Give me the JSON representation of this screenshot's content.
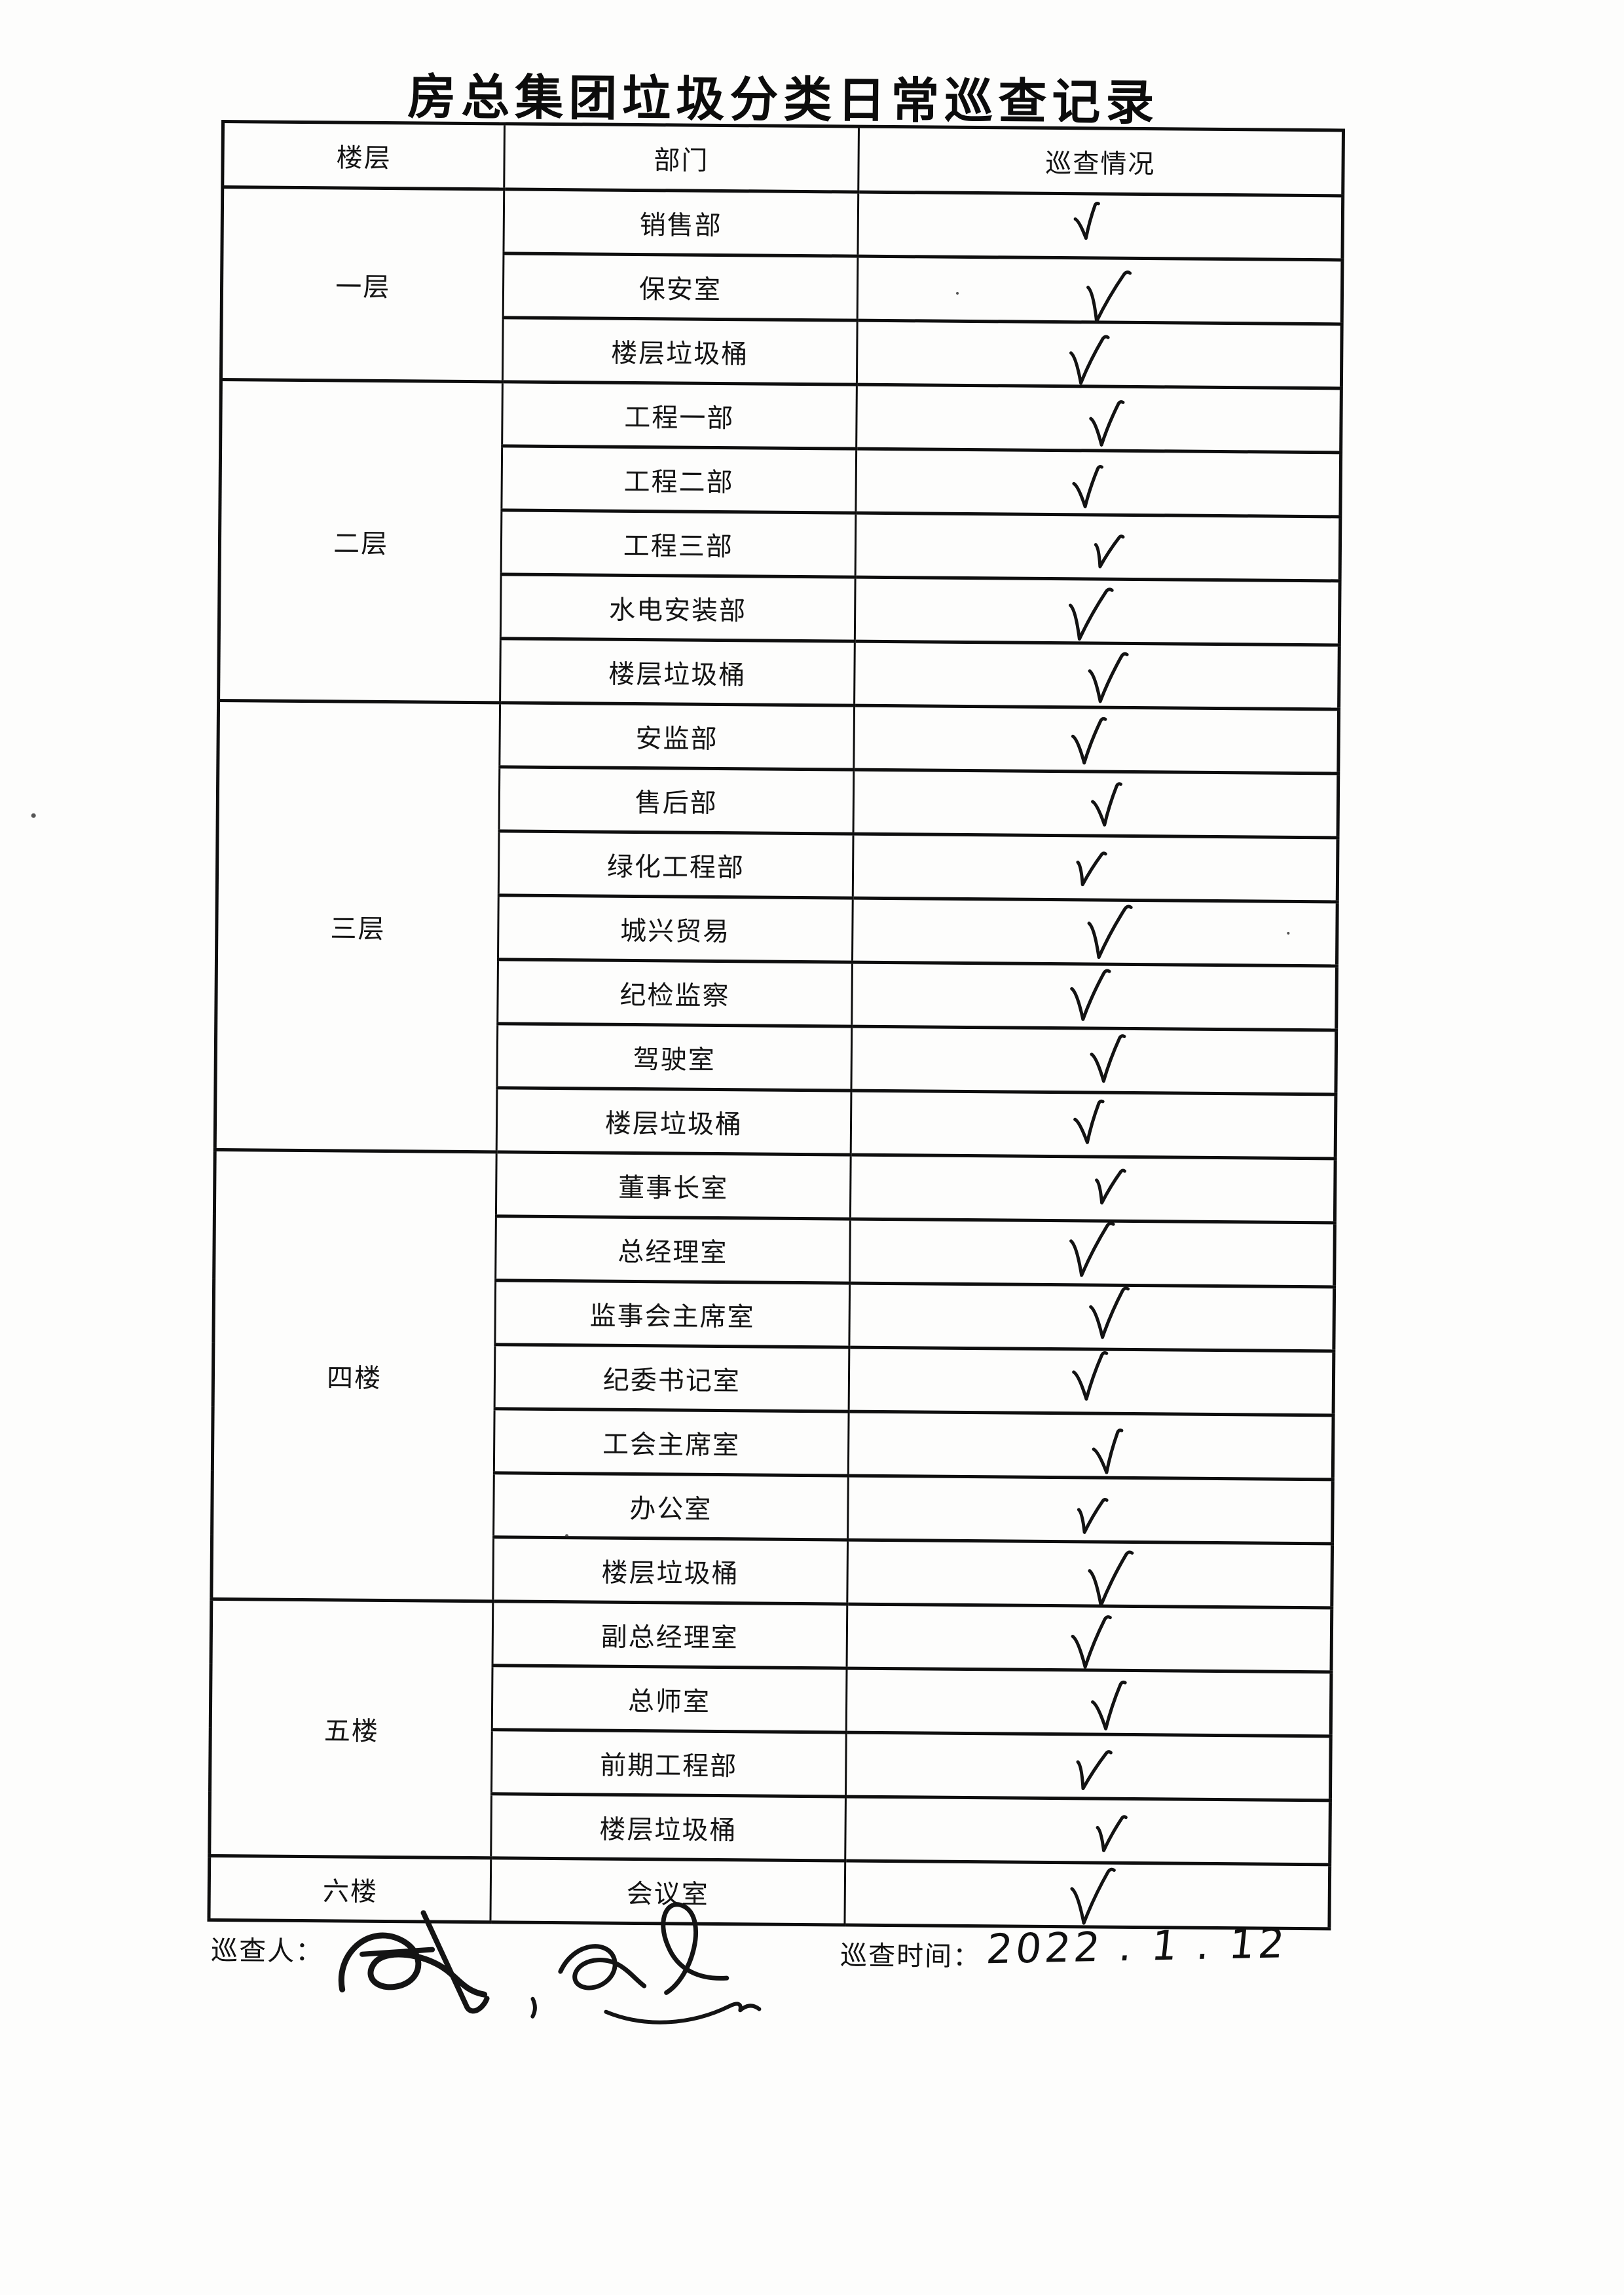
{
  "document": {
    "title": "房总集团垃圾分类日常巡查记录"
  },
  "table": {
    "columns": [
      "楼层",
      "部门",
      "巡查情况"
    ],
    "check_symbol": "√",
    "floors": [
      {
        "name": "一层",
        "rows": [
          {
            "department": "销售部",
            "checked": true
          },
          {
            "department": "保安室",
            "checked": true
          },
          {
            "department": "楼层垃圾桶",
            "checked": true
          }
        ]
      },
      {
        "name": "二层",
        "rows": [
          {
            "department": "工程一部",
            "checked": true
          },
          {
            "department": "工程二部",
            "checked": true
          },
          {
            "department": "工程三部",
            "checked": true
          },
          {
            "department": "水电安装部",
            "checked": true
          },
          {
            "department": "楼层垃圾桶",
            "checked": true
          }
        ]
      },
      {
        "name": "三层",
        "rows": [
          {
            "department": "安监部",
            "checked": true
          },
          {
            "department": "售后部",
            "checked": true
          },
          {
            "department": "绿化工程部",
            "checked": true
          },
          {
            "department": "城兴贸易",
            "checked": true
          },
          {
            "department": "纪检监察",
            "checked": true
          },
          {
            "department": "驾驶室",
            "checked": true
          },
          {
            "department": "楼层垃圾桶",
            "checked": true
          }
        ]
      },
      {
        "name": "四楼",
        "rows": [
          {
            "department": "董事长室",
            "checked": true
          },
          {
            "department": "总经理室",
            "checked": true
          },
          {
            "department": "监事会主席室",
            "checked": true
          },
          {
            "department": "纪委书记室",
            "checked": true
          },
          {
            "department": "工会主席室",
            "checked": true
          },
          {
            "department": "办公室",
            "checked": true
          },
          {
            "department": "楼层垃圾桶",
            "checked": true
          }
        ]
      },
      {
        "name": "五楼",
        "rows": [
          {
            "department": "副总经理室",
            "checked": true
          },
          {
            "department": "总师室",
            "checked": true
          },
          {
            "department": "前期工程部",
            "checked": true
          },
          {
            "department": "楼层垃圾桶",
            "checked": true
          }
        ]
      },
      {
        "name": "六楼",
        "rows": [
          {
            "department": "会议室",
            "checked": true
          }
        ]
      }
    ]
  },
  "footer": {
    "inspector_label": "巡查人：",
    "time_label": "巡查时间：",
    "time_value": "2022 . 1 . 12"
  }
}
